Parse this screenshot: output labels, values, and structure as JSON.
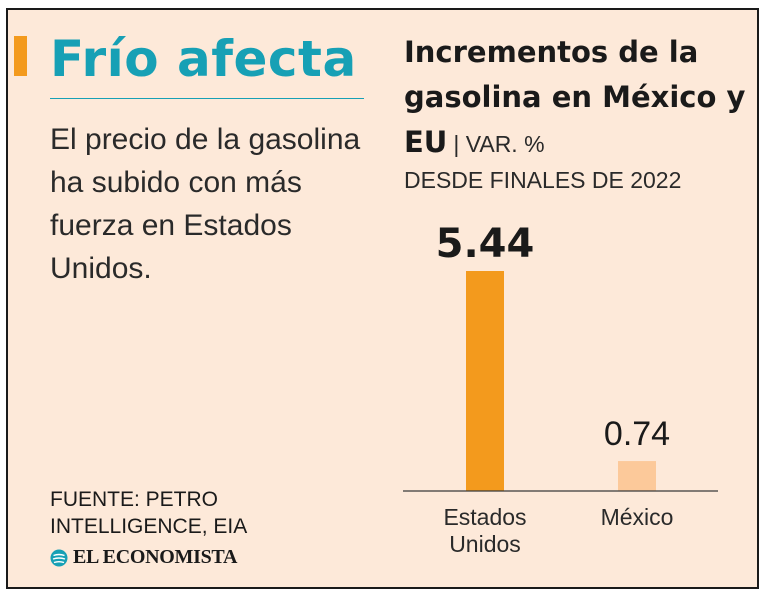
{
  "headline": "Frío afecta",
  "subhead": "El precio de la gasolina ha subido con más fuerza en Estados Unidos.",
  "source": "FUENTE: PETRO INTELLIGENCE, EIA",
  "logo_text": "EL ECONOMISTA",
  "chart_title": "Incrementos de la gasolina en México y EU",
  "chart_title_suffix": "| VAR. %",
  "chart_subtitle": "DESDE FINALES DE 2022",
  "colors": {
    "accent": "#f39a1d",
    "headline": "#17a0b5",
    "background": "#fde9d9",
    "bar_primary": "#f39a1d",
    "bar_secondary": "#fcc99a"
  },
  "chart_data": {
    "type": "bar",
    "title": "Incrementos de la gasolina en México y EU",
    "subtitle": "VAR. % DESDE FINALES DE 2022",
    "categories": [
      "Estados Unidos",
      "México"
    ],
    "values": [
      5.44,
      0.74
    ],
    "value_labels": [
      "5.44",
      "0.74"
    ],
    "xlabel": "",
    "ylabel": "",
    "ylim": [
      0,
      5.44
    ],
    "grid": false
  }
}
